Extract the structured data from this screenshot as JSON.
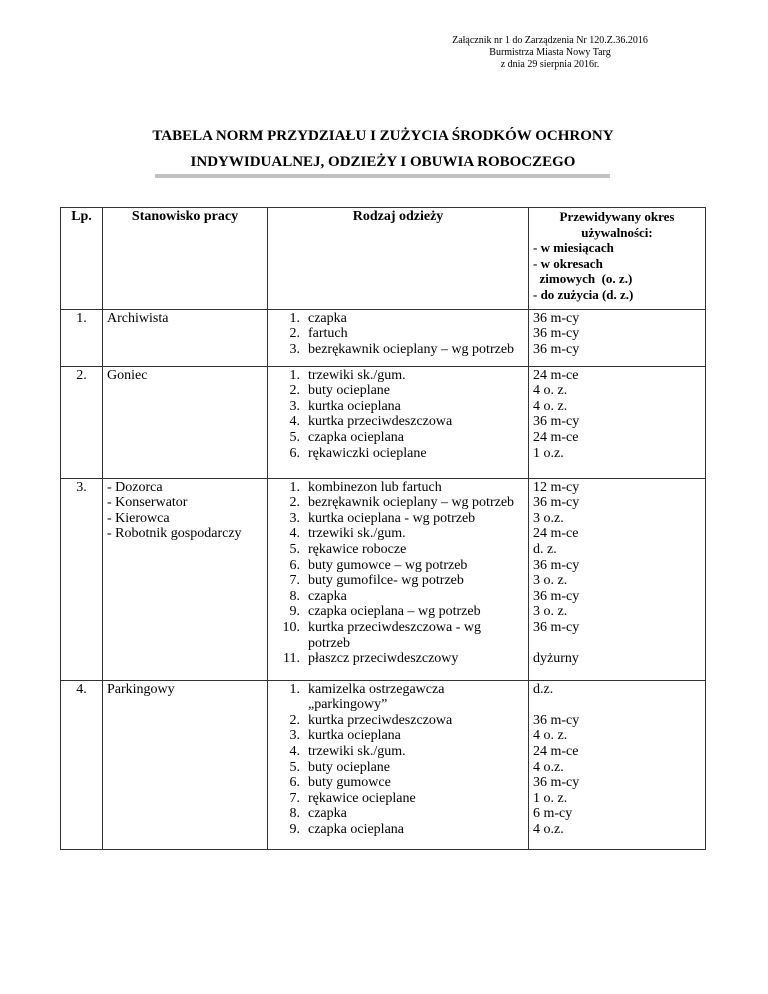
{
  "annex": [
    "Załącznik nr 1 do Zarządzenia Nr 120.Z.36.2016",
    "Burmistrza Miasta Nowy Targ",
    "z dnia 29 sierpnia 2016r."
  ],
  "title": [
    "TABELA NORM PRZYDZIAŁU I ZUŻYCIA ŚRODKÓW OCHRONY",
    "INDYWIDUALNEJ, ODZIEŻY I OBUWIA ROBOCZEGO"
  ],
  "headers": {
    "lp": "Lp.",
    "position": "Stanowisko pracy",
    "clothing": "Rodzaj odzieży",
    "period": [
      "Przewidywany okres",
      "używalności:",
      "- w miesiącach",
      "- w okresach",
      "  zimowych  (o. z.)",
      "- do zużycia (d. z.)"
    ]
  },
  "rows": [
    {
      "lp": "1.",
      "positions": [
        "Archiwista"
      ],
      "items": [
        [
          "1.",
          "czapka"
        ],
        [
          "2.",
          "fartuch"
        ],
        [
          "3.",
          "bezrękawnik ocieplany – wg potrzeb"
        ]
      ],
      "periods": [
        "36 m-cy",
        "36 m-cy",
        "36 m-cy"
      ]
    },
    {
      "lp": "2.",
      "positions": [
        "Goniec"
      ],
      "items": [
        [
          "1.",
          "trzewiki sk./gum."
        ],
        [
          "2.",
          "buty ocieplane"
        ],
        [
          "3.",
          "kurtka ocieplana"
        ],
        [
          "4.",
          "kurtka przeciwdeszczowa"
        ],
        [
          "5.",
          "czapka ocieplana"
        ],
        [
          "6.",
          "rękawiczki ocieplane"
        ]
      ],
      "periods": [
        "24 m-ce",
        "4 o. z.",
        "4 o. z.",
        "36 m-cy",
        "24 m-ce",
        "1 o.z."
      ]
    },
    {
      "lp": "3.",
      "positions": [
        "- Dozorca",
        "- Konserwator",
        "- Kierowca",
        "- Robotnik gospodarczy"
      ],
      "items": [
        [
          "1.",
          "kombinezon lub fartuch"
        ],
        [
          "2.",
          "bezrękawnik ocieplany – wg potrzeb"
        ],
        [
          "3.",
          "kurtka ocieplana - wg potrzeb"
        ],
        [
          "4.",
          "trzewiki sk./gum."
        ],
        [
          "5.",
          "rękawice robocze"
        ],
        [
          "6.",
          "buty gumowce – wg potrzeb"
        ],
        [
          "7.",
          "buty gumofilce- wg potrzeb"
        ],
        [
          "8.",
          "czapka"
        ],
        [
          "9.",
          "czapka ocieplana – wg potrzeb"
        ],
        [
          "10.",
          "kurtka przeciwdeszczowa - wg potrzeb"
        ],
        [
          "11.",
          "płaszcz przeciwdeszczowy"
        ]
      ],
      "periods": [
        "12 m-cy",
        "36 m-cy",
        "3 o.z.",
        "24 m-ce",
        "d. z.",
        "36 m-cy",
        "3 o. z.",
        "36 m-cy",
        "3 o. z.",
        "36 m-cy",
        "",
        "dyżurny"
      ]
    },
    {
      "lp": "4.",
      "positions": [
        "Parkingowy"
      ],
      "items": [
        [
          "1.",
          "kamizelka ostrzegawcza „parkingowy”"
        ],
        [
          "2.",
          "kurtka przeciwdeszczowa"
        ],
        [
          "3.",
          "kurtka ocieplana"
        ],
        [
          "4.",
          "trzewiki sk./gum."
        ],
        [
          "5.",
          "buty ocieplane"
        ],
        [
          "6.",
          "buty gumowce"
        ],
        [
          "7.",
          "rękawice ocieplane"
        ],
        [
          "8.",
          "czapka"
        ],
        [
          "9.",
          "czapka ocieplana"
        ]
      ],
      "periods": [
        "d.z.",
        "",
        "36 m-cy",
        "4 o. z.",
        "24 m-ce",
        "4 o.z.",
        "36 m-cy",
        "1 o. z.",
        "6 m-cy",
        "4 o.z."
      ]
    }
  ]
}
